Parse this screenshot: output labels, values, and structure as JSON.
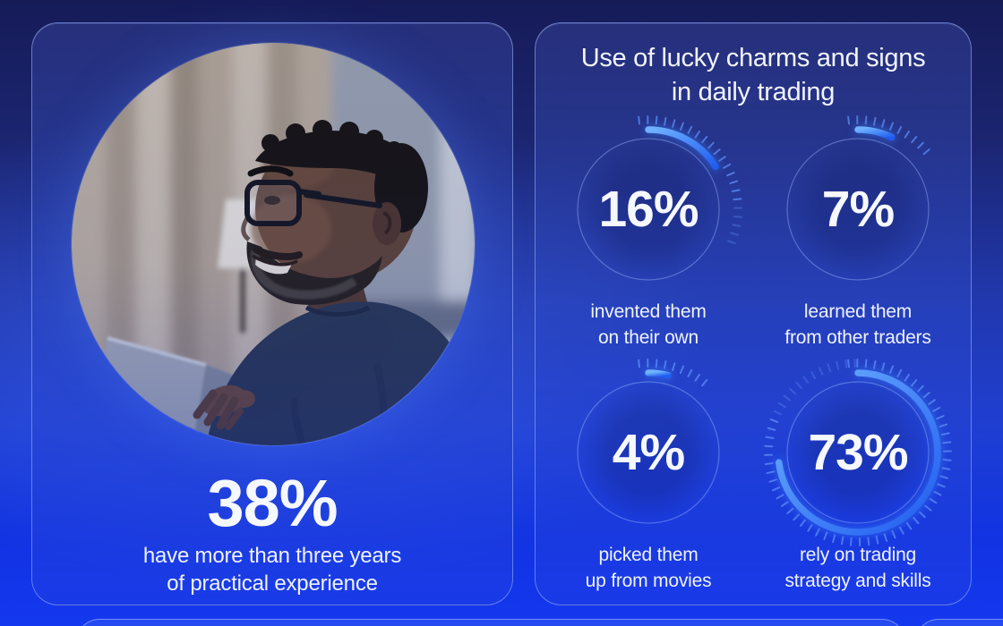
{
  "theme": {
    "accent_arc_color": "#3b82f6",
    "arc_gradient": [
      "#6fb2ff",
      "#1f5cf0"
    ],
    "tick_color": "rgba(96,145,250,0.85)",
    "ring_color": "rgba(160,185,255,0.42)",
    "text_color": "#f3f6ff",
    "card_border_color": "rgba(172,196,255,0.5)",
    "background_blues": [
      "#161b58",
      "#2138ae",
      "#1133e2"
    ]
  },
  "left_card": {
    "photo_description": "Smiling man with glasses and beard working on a laptop in front of beige curtains and a lamp",
    "stat": {
      "display": "38%",
      "label_lines": [
        "have more than three years",
        "of practical experience"
      ]
    }
  },
  "right_card": {
    "title_lines": [
      "Use of lucky charms and signs",
      "in daily trading"
    ]
  },
  "chart_data": {
    "type": "pie",
    "subtype": "radial-progress-gauge-grid",
    "title": "Use of lucky charms and signs in daily trading",
    "unit": "%",
    "value_range": [
      0,
      100
    ],
    "gauge_start_angle_deg": 0,
    "gauge_direction": "clockwise",
    "series": [
      {
        "value": 16,
        "display": "16%",
        "label": "invented them on their own",
        "label_lines": [
          "invented them",
          "on their own"
        ]
      },
      {
        "value": 7,
        "display": "7%",
        "label": "learned them from other traders",
        "label_lines": [
          "learned them",
          "from other traders"
        ]
      },
      {
        "value": 4,
        "display": "4%",
        "label": "picked them up from movies",
        "label_lines": [
          "picked them",
          "up from movies"
        ]
      },
      {
        "value": 73,
        "display": "73%",
        "label": "rely on trading strategy and skills",
        "label_lines": [
          "rely on trading",
          "strategy and skills"
        ]
      }
    ],
    "related_stat": {
      "value": 38,
      "display": "38%",
      "label": "have more than three years of practical experience"
    }
  }
}
